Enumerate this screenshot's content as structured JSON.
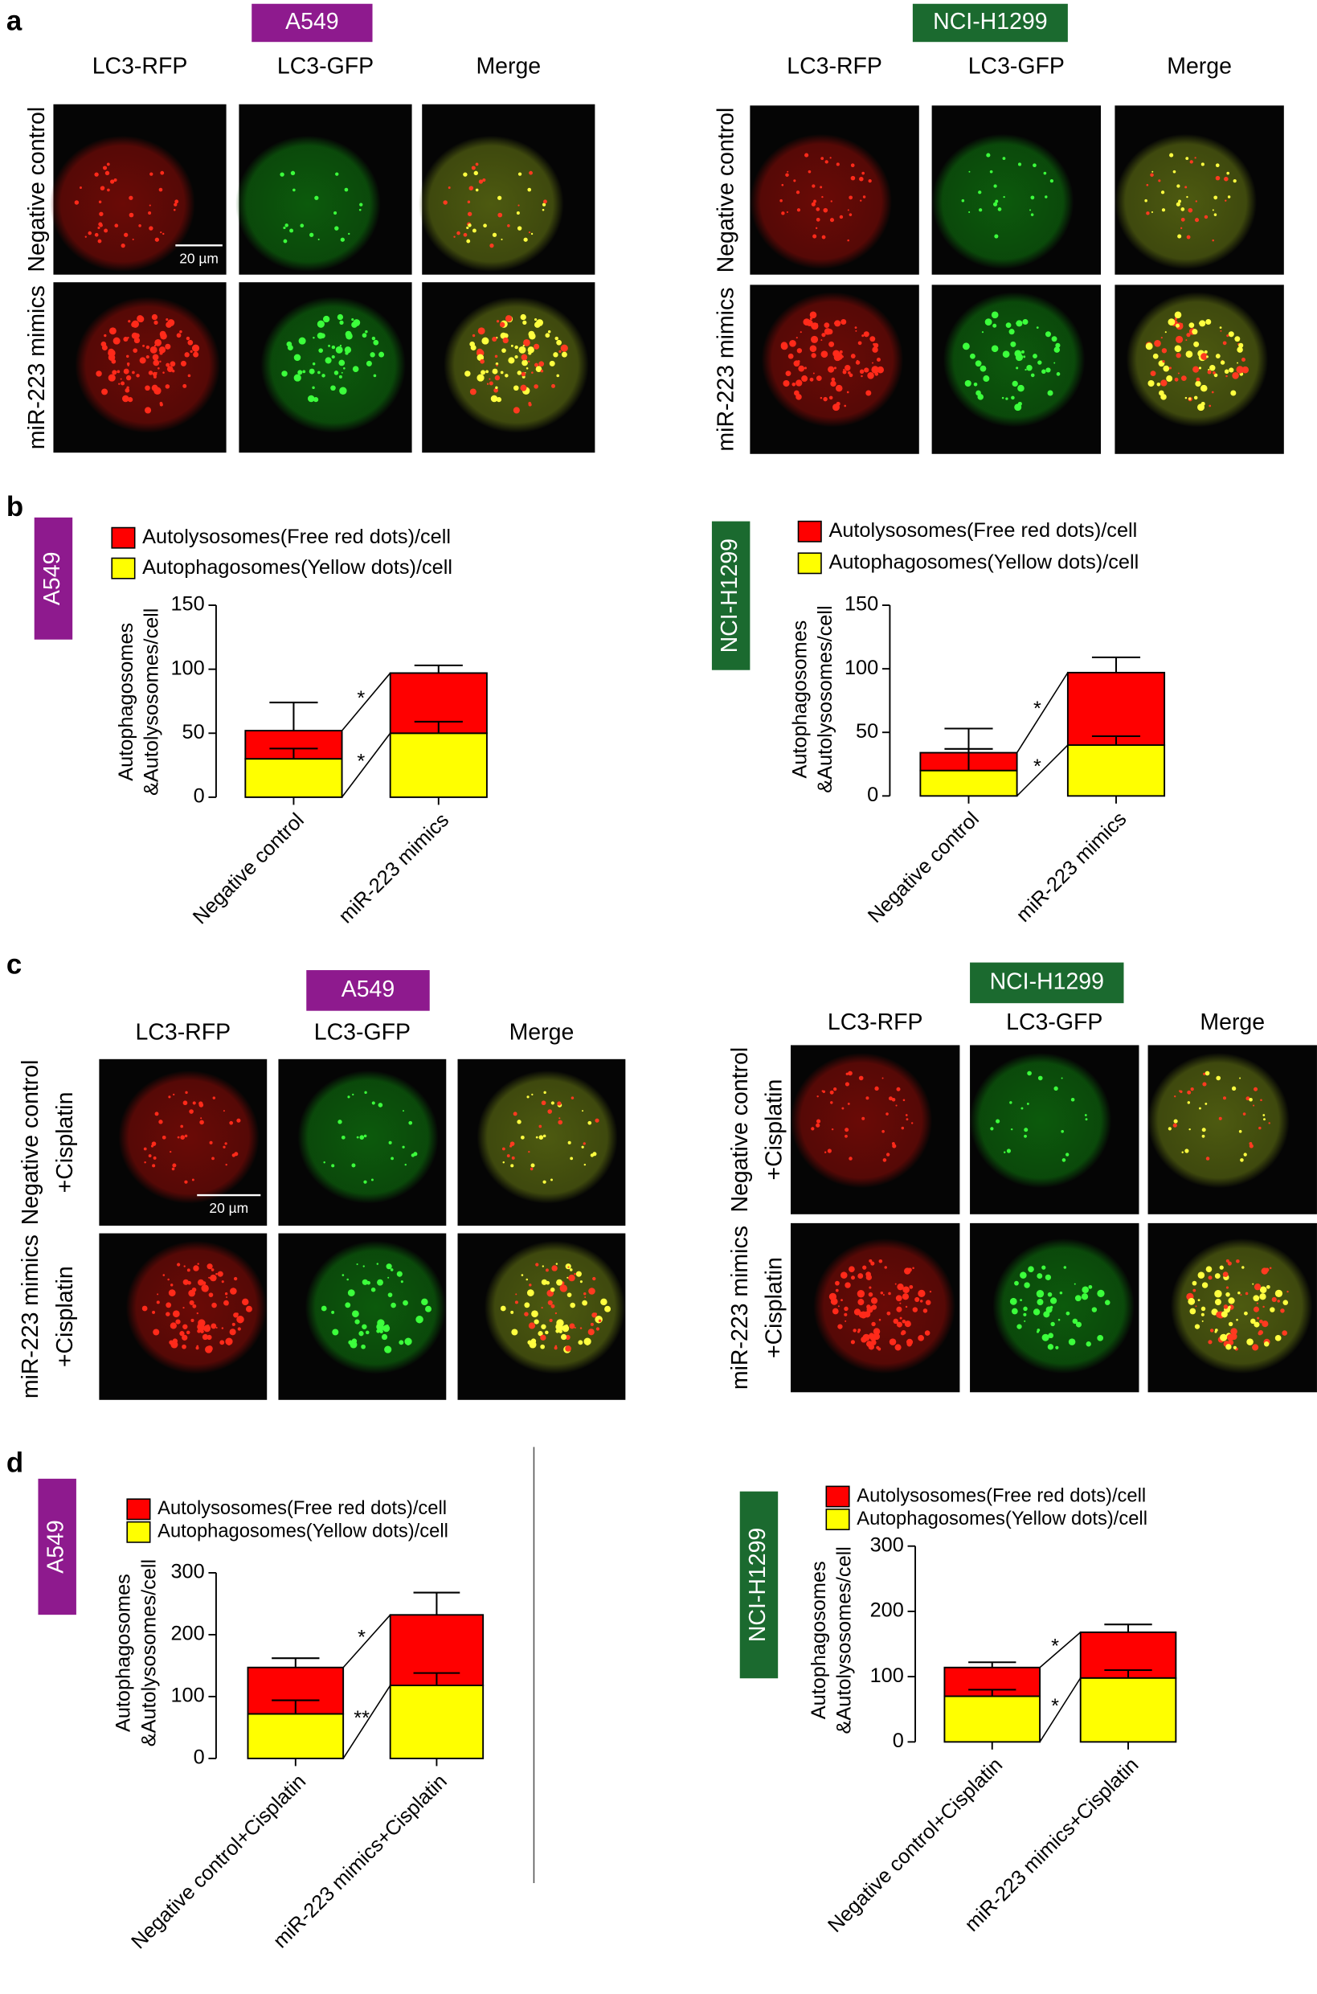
{
  "panel_letters": [
    "a",
    "b",
    "c",
    "d"
  ],
  "image_panels": [
    {
      "tag": "A549",
      "tag_color": "#8e1a8e",
      "columns": [
        "LC3-RFP",
        "LC3-GFP",
        "Merge"
      ],
      "rows": [
        [
          "Negative control"
        ],
        [
          "miR-223 mimics"
        ]
      ],
      "scale_bar": "20 µm"
    },
    {
      "tag": "NCI-H1299",
      "tag_color": "#1b6a2f",
      "columns": [
        "LC3-RFP",
        "LC3-GFP",
        "Merge"
      ],
      "rows": [
        [
          "Negative control"
        ],
        [
          "miR-223 mimics"
        ]
      ]
    },
    {
      "tag": "A549",
      "tag_color": "#8e1a8e",
      "columns": [
        "LC3-RFP",
        "LC3-GFP",
        "Merge"
      ],
      "rows": [
        [
          "Negative control",
          "+Cisplatin"
        ],
        [
          "miR-223 mimics",
          "+Cisplatin"
        ]
      ],
      "scale_bar": "20 µm"
    },
    {
      "tag": "NCI-H1299",
      "tag_color": "#1b6a2f",
      "columns": [
        "LC3-RFP",
        "LC3-GFP",
        "Merge"
      ],
      "rows": [
        [
          "Negative control",
          "+Cisplatin"
        ],
        [
          "miR-223 mimics",
          "+Cisplatin"
        ]
      ]
    }
  ],
  "chart_data": [
    {
      "type": "bar",
      "stacked": true,
      "tag": "A549",
      "tag_color": "#8e1a8e",
      "y_label": [
        "Autophagosomes",
        "&Autolysosomes/cell"
      ],
      "categories": [
        "Negative control",
        "miR-223 mimics"
      ],
      "series": [
        {
          "name": "Autolysosomes(Free red dots)/cell",
          "color": "#ff0000",
          "values": [
            22,
            47
          ],
          "errors": [
            22,
            6
          ]
        },
        {
          "name": "Autophagosomes(Yellow dots)/cell",
          "color": "#ffff00",
          "values": [
            30,
            50
          ],
          "errors": [
            8,
            9
          ]
        }
      ],
      "significance": [
        "*",
        "*"
      ],
      "ylim": [
        0,
        150
      ],
      "yticks": [
        0,
        50,
        100,
        150
      ]
    },
    {
      "type": "bar",
      "stacked": true,
      "tag": "NCI-H1299",
      "tag_color": "#1b6a2f",
      "y_label": [
        "Autophagosomes",
        "&Autolysosomes/cell"
      ],
      "categories": [
        "Negative control",
        "miR-223 mimics"
      ],
      "series": [
        {
          "name": "Autolysosomes(Free red dots)/cell",
          "color": "#ff0000",
          "values": [
            14,
            57
          ],
          "errors": [
            19,
            12
          ]
        },
        {
          "name": "Autophagosomes(Yellow dots)/cell",
          "color": "#ffff00",
          "values": [
            20,
            40
          ],
          "errors": [
            17,
            7
          ]
        }
      ],
      "significance": [
        "*",
        "*"
      ],
      "ylim": [
        0,
        150
      ],
      "yticks": [
        0,
        50,
        100,
        150
      ]
    },
    {
      "type": "bar",
      "stacked": true,
      "tag": "A549",
      "tag_color": "#8e1a8e",
      "y_label": [
        "Autophagosomes",
        "&Autolysosomes/cell"
      ],
      "categories": [
        "Negative control+Cisplatin",
        "miR-223 mimics+Cisplatin"
      ],
      "series": [
        {
          "name": "Autolysosomes(Free red dots)/cell",
          "color": "#ff0000",
          "values": [
            75,
            114
          ],
          "errors": [
            15,
            36
          ]
        },
        {
          "name": "Autophagosomes(Yellow dots)/cell",
          "color": "#ffff00",
          "values": [
            72,
            118
          ],
          "errors": [
            22,
            20
          ]
        }
      ],
      "significance": [
        "*",
        "**"
      ],
      "ylim": [
        0,
        300
      ],
      "yticks": [
        0,
        100,
        200,
        300
      ]
    },
    {
      "type": "bar",
      "stacked": true,
      "tag": "NCI-H1299",
      "tag_color": "#1b6a2f",
      "y_label": [
        "Autophagosomes",
        "&Autolysosomes/cell"
      ],
      "categories": [
        "Negative control+Cisplatin",
        "miR-223 mimics+Cisplatin"
      ],
      "series": [
        {
          "name": "Autolysosomes(Free red dots)/cell",
          "color": "#ff0000",
          "values": [
            44,
            70
          ],
          "errors": [
            8,
            12
          ]
        },
        {
          "name": "Autophagosomes(Yellow dots)/cell",
          "color": "#ffff00",
          "values": [
            70,
            98
          ],
          "errors": [
            10,
            12
          ]
        }
      ],
      "significance": [
        "*",
        "*"
      ],
      "ylim": [
        0,
        300
      ],
      "yticks": [
        0,
        100,
        200,
        300
      ]
    }
  ]
}
